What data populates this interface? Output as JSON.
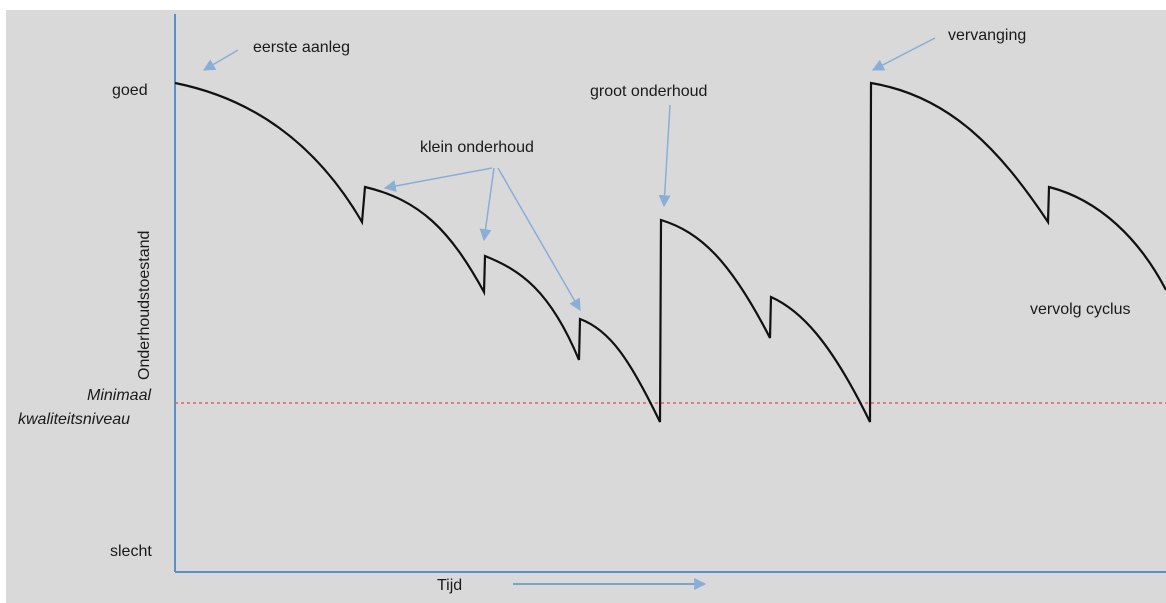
{
  "y_axis": {
    "title": "Onderhoudstoestand",
    "top_label": "goed",
    "bottom_label": "slecht"
  },
  "x_axis": {
    "title": "Tijd"
  },
  "threshold": {
    "label_line1": "Minimaal",
    "label_line2": "kwaliteitsniveau",
    "color": "#e06060"
  },
  "annotations": {
    "first_build": "eerste aanleg",
    "small_maintenance": "klein onderhoud",
    "major_maintenance": "groot onderhoud",
    "replacement": "vervanging",
    "next_cycle": "vervolg cyclus"
  },
  "colors": {
    "axis": "#5b8fc9",
    "arrow": "#8aaed6",
    "curve": "#111111",
    "background": "#d9d9d9"
  }
}
